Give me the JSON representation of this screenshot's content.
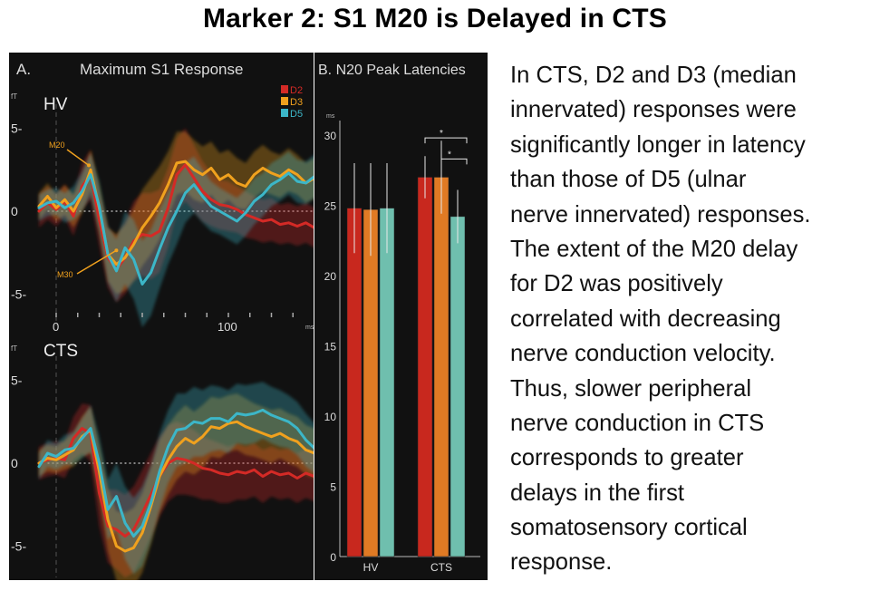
{
  "slide": {
    "title": "Marker 2:  S1 M20 is Delayed in CTS",
    "body_lines": [
      "In CTS, D2 and D3 (median",
      "innervated) responses were",
      "significantly longer in latency",
      "than those of D5 (ulnar",
      "nerve innervated) responses.",
      "The extent of the M20 delay",
      "for D2 was positively",
      "correlated with decreasing",
      "nerve conduction velocity.",
      "Thus, slower peripheral",
      "nerve conduction in CTS",
      "corresponds to greater",
      "delays in the first",
      "somatosensory cortical",
      "response."
    ]
  },
  "colors": {
    "D2": "#d42a26",
    "D3": "#f0a11e",
    "D5": "#3cb6c8",
    "bar_D2": "#c8281e",
    "bar_D3": "#e07a24",
    "bar_D5": "#6fbfae",
    "background": "#111111",
    "axis": "#cccccc"
  },
  "chart_data": [
    {
      "type": "line",
      "panel_label": "A.",
      "title": "Maximum S1 Response",
      "ylabel": "fT",
      "xunit": "ms",
      "legend": [
        "D2",
        "D3",
        "D5"
      ],
      "legend_position": "top-right",
      "subpanels": [
        {
          "name": "HV",
          "ylim": [
            -7,
            7
          ],
          "yticks": [
            5,
            0,
            -5
          ],
          "ytick_labels": [
            "5-",
            "0",
            "-5-"
          ],
          "xlim": [
            -10,
            160
          ],
          "xticks": [
            0,
            100
          ],
          "annotations": [
            {
              "text": "M20",
              "x": 20,
              "y": 2
            },
            {
              "text": "M30",
              "x": 33,
              "y": -3
            }
          ],
          "x": [
            -10,
            -5,
            0,
            5,
            10,
            15,
            20,
            25,
            30,
            35,
            40,
            45,
            50,
            55,
            60,
            65,
            70,
            75,
            80,
            85,
            90,
            95,
            100,
            105,
            110,
            115,
            120,
            125,
            130,
            135,
            140,
            145,
            150,
            155,
            160
          ],
          "series": [
            {
              "name": "D2",
              "values": [
                0.0,
                0.5,
                0.1,
                0.6,
                -0.3,
                1.5,
                2.2,
                -0.5,
                -2.8,
                -3.5,
                -2.8,
                -1.8,
                -1.4,
                -1.5,
                -1.2,
                0.2,
                2.2,
                2.8,
                2.0,
                1.2,
                0.7,
                0.4,
                0.3,
                0.1,
                -0.2,
                -0.4,
                -0.6,
                -0.5,
                -0.8,
                -0.7,
                -0.9,
                -0.7,
                -1.0,
                -0.9,
                -1.0
              ],
              "band": [
                1.0,
                1.0,
                1.0,
                1.0,
                1.2,
                1.4,
                1.5,
                1.6,
                1.8,
                2.0,
                2.2,
                2.4,
                2.5,
                2.6,
                2.5,
                2.4,
                2.2,
                2.2,
                2.0,
                1.8,
                1.6,
                1.5,
                1.5,
                1.4,
                1.4,
                1.3,
                1.3,
                1.3,
                1.2,
                1.2,
                1.2,
                1.2,
                1.2,
                1.2,
                1.2
              ]
            },
            {
              "name": "D3",
              "values": [
                0.3,
                0.9,
                0.2,
                0.7,
                0.0,
                1.0,
                2.5,
                0.2,
                -2.6,
                -3.2,
                -2.8,
                -2.0,
                -1.0,
                -0.3,
                0.5,
                1.6,
                2.9,
                3.0,
                2.5,
                2.2,
                2.6,
                1.9,
                2.2,
                1.7,
                1.5,
                2.2,
                2.6,
                2.3,
                2.1,
                2.5,
                2.2,
                1.7,
                2.0,
                2.1,
                1.8
              ],
              "band": [
                0.8,
                0.8,
                0.8,
                0.9,
                1.0,
                1.1,
                1.2,
                1.4,
                1.6,
                1.8,
                2.0,
                2.2,
                2.3,
                2.3,
                2.2,
                2.0,
                1.9,
                1.8,
                1.8,
                1.7,
                1.6,
                1.6,
                1.5,
                1.5,
                1.4,
                1.4,
                1.4,
                1.3,
                1.3,
                1.3,
                1.2,
                1.2,
                1.2,
                1.2,
                1.2
              ]
            },
            {
              "name": "D5",
              "values": [
                0.2,
                0.5,
                0.6,
                0.2,
                0.5,
                1.2,
                2.2,
                0.3,
                -2.6,
                -3.6,
                -2.2,
                -2.9,
                -4.4,
                -3.7,
                -2.3,
                -1.0,
                0.0,
                1.1,
                1.6,
                0.9,
                0.3,
                0.0,
                -0.3,
                -0.6,
                -0.1,
                0.6,
                1.0,
                1.6,
                1.9,
                2.3,
                1.8,
                1.7,
                2.1,
                2.0,
                1.9
              ],
              "band": [
                0.8,
                0.8,
                0.8,
                0.9,
                1.0,
                1.2,
                1.3,
                1.5,
                1.7,
                1.9,
                2.2,
                2.4,
                2.6,
                2.6,
                2.4,
                2.2,
                2.0,
                1.8,
                1.7,
                1.6,
                1.5,
                1.4,
                1.4,
                1.4,
                1.4,
                1.4,
                1.3,
                1.3,
                1.3,
                1.3,
                1.3,
                1.3,
                1.3,
                1.3,
                1.3
              ]
            }
          ]
        },
        {
          "name": "CTS",
          "ylim": [
            -7,
            7
          ],
          "yticks": [
            5,
            0,
            -5
          ],
          "ytick_labels": [
            "5-",
            "0",
            "-5-"
          ],
          "xlim": [
            -10,
            160
          ],
          "x": [
            -10,
            -5,
            0,
            5,
            10,
            15,
            20,
            25,
            30,
            35,
            40,
            45,
            50,
            55,
            60,
            65,
            70,
            75,
            80,
            85,
            90,
            95,
            100,
            105,
            110,
            115,
            120,
            125,
            130,
            135,
            140,
            145,
            150,
            155,
            160
          ],
          "series": [
            {
              "name": "D2",
              "values": [
                0.0,
                0.2,
                0.3,
                0.2,
                1.5,
                2.1,
                1.8,
                -1.8,
                -3.8,
                -4.0,
                -4.4,
                -4.0,
                -3.0,
                -1.9,
                -0.8,
                0.0,
                0.3,
                0.2,
                0.0,
                -0.3,
                -0.4,
                -0.6,
                -0.7,
                -0.5,
                -0.6,
                -0.4,
                -0.8,
                -0.5,
                -0.7,
                -0.6,
                -0.9,
                -0.6,
                -0.8,
                -0.7,
                -0.8
              ],
              "band": [
                1.0,
                1.0,
                1.0,
                1.1,
                1.3,
                1.5,
                1.7,
                2.0,
                2.2,
                2.4,
                2.5,
                2.6,
                2.6,
                2.5,
                2.4,
                2.3,
                2.2,
                2.1,
                2.0,
                1.9,
                1.8,
                1.8,
                1.7,
                1.7,
                1.6,
                1.6,
                1.6,
                1.5,
                1.5,
                1.5,
                1.5,
                1.5,
                1.5,
                1.5,
                1.5
              ]
            },
            {
              "name": "D3",
              "values": [
                0.0,
                0.3,
                0.2,
                0.5,
                0.8,
                1.6,
                2.0,
                -0.5,
                -3.4,
                -5.0,
                -5.3,
                -5.1,
                -4.2,
                -2.6,
                -0.8,
                0.2,
                1.0,
                1.5,
                1.2,
                1.6,
                2.2,
                2.1,
                2.4,
                2.5,
                2.2,
                2.0,
                1.8,
                1.6,
                1.8,
                1.5,
                1.3,
                0.8,
                0.6,
                0.4,
                0.2
              ],
              "band": [
                0.8,
                0.8,
                0.8,
                0.9,
                1.0,
                1.2,
                1.4,
                1.6,
                1.9,
                2.1,
                2.3,
                2.4,
                2.4,
                2.3,
                2.2,
                2.1,
                2.0,
                2.0,
                1.9,
                1.9,
                1.8,
                1.8,
                1.7,
                1.7,
                1.7,
                1.6,
                1.6,
                1.6,
                1.5,
                1.5,
                1.5,
                1.5,
                1.5,
                1.5,
                1.5
              ]
            },
            {
              "name": "D5",
              "values": [
                -0.2,
                0.6,
                0.4,
                0.8,
                0.9,
                1.5,
                2.1,
                0.0,
                -2.8,
                -2.0,
                -3.6,
                -4.4,
                -3.8,
                -2.4,
                -0.5,
                1.0,
                2.0,
                2.1,
                2.5,
                2.4,
                2.7,
                2.7,
                2.5,
                3.0,
                2.9,
                3.0,
                3.2,
                2.9,
                2.7,
                2.5,
                2.1,
                1.4,
                0.9,
                0.6,
                0.5
              ],
              "band": [
                0.8,
                0.8,
                0.8,
                0.9,
                1.0,
                1.2,
                1.4,
                1.6,
                1.8,
                2.0,
                2.2,
                2.3,
                2.4,
                2.3,
                2.3,
                2.2,
                2.2,
                2.1,
                2.1,
                2.0,
                2.0,
                1.9,
                1.9,
                1.8,
                1.8,
                1.8,
                1.7,
                1.7,
                1.7,
                1.6,
                1.6,
                1.6,
                1.5,
                1.5,
                1.5
              ]
            }
          ]
        }
      ]
    },
    {
      "type": "bar",
      "panel_label": "B.",
      "title": "N20 Peak Latencies",
      "yunit": "ms",
      "ylim": [
        0,
        32
      ],
      "yticks": [
        0,
        5,
        10,
        15,
        20,
        25,
        30
      ],
      "categories": [
        "HV",
        "CTS"
      ],
      "series": [
        {
          "name": "D2",
          "values": [
            24.8,
            27.0
          ],
          "error": [
            3.2,
            1.5
          ]
        },
        {
          "name": "D3",
          "values": [
            24.7,
            27.0
          ],
          "error": [
            3.3,
            2.6
          ]
        },
        {
          "name": "D5",
          "values": [
            24.8,
            24.2
          ],
          "error": [
            3.2,
            1.9
          ]
        }
      ],
      "significance": [
        {
          "from": "D2",
          "to": "D5",
          "group": "CTS",
          "label": "*"
        },
        {
          "from": "D3",
          "to": "D5",
          "group": "CTS",
          "label": "*"
        }
      ]
    }
  ]
}
